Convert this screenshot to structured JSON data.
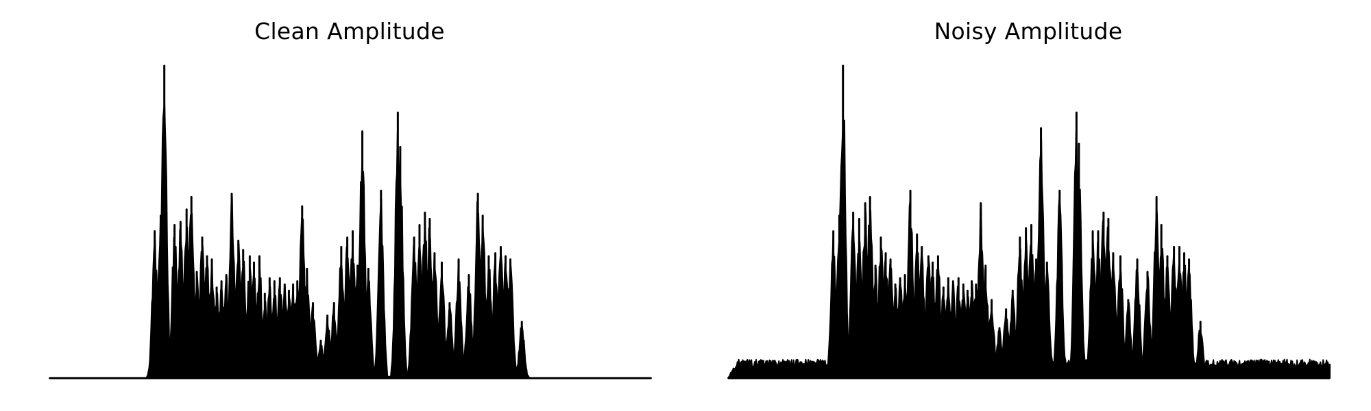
{
  "figure": {
    "background": "#ffffff",
    "line_color": "#000000"
  },
  "chart_data": [
    {
      "type": "area",
      "title": "Clean Amplitude",
      "xlabel": "",
      "ylabel": "",
      "axes_visible": false,
      "grid": false,
      "x_range": [
        0,
        1
      ],
      "y_range": [
        0,
        1
      ],
      "noise_floor": 0.0,
      "peaks": [
        [
          0.175,
          0.47
        ],
        [
          0.185,
          0.52
        ],
        [
          0.191,
          1.0
        ],
        [
          0.208,
          0.49
        ],
        [
          0.218,
          0.5
        ],
        [
          0.228,
          0.54
        ],
        [
          0.236,
          0.58
        ],
        [
          0.245,
          0.34
        ],
        [
          0.254,
          0.45
        ],
        [
          0.262,
          0.39
        ],
        [
          0.27,
          0.38
        ],
        [
          0.278,
          0.29
        ],
        [
          0.286,
          0.31
        ],
        [
          0.294,
          0.33
        ],
        [
          0.303,
          0.59
        ],
        [
          0.314,
          0.44
        ],
        [
          0.322,
          0.41
        ],
        [
          0.333,
          0.39
        ],
        [
          0.34,
          0.37
        ],
        [
          0.349,
          0.39
        ],
        [
          0.358,
          0.27
        ],
        [
          0.366,
          0.32
        ],
        [
          0.374,
          0.31
        ],
        [
          0.383,
          0.32
        ],
        [
          0.391,
          0.3
        ],
        [
          0.398,
          0.28
        ],
        [
          0.405,
          0.3
        ],
        [
          0.412,
          0.31
        ],
        [
          0.42,
          0.55
        ],
        [
          0.428,
          0.35
        ],
        [
          0.438,
          0.24
        ],
        [
          0.451,
          0.12
        ],
        [
          0.462,
          0.2
        ],
        [
          0.473,
          0.24
        ],
        [
          0.485,
          0.42
        ],
        [
          0.495,
          0.45
        ],
        [
          0.504,
          0.47
        ],
        [
          0.512,
          0.36
        ],
        [
          0.52,
          0.79
        ],
        [
          0.53,
          0.35
        ],
        [
          0.551,
          0.6
        ],
        [
          0.579,
          0.85
        ],
        [
          0.583,
          0.74
        ],
        [
          0.606,
          0.45
        ],
        [
          0.615,
          0.49
        ],
        [
          0.624,
          0.53
        ],
        [
          0.632,
          0.51
        ],
        [
          0.64,
          0.4
        ],
        [
          0.652,
          0.37
        ],
        [
          0.665,
          0.24
        ],
        [
          0.68,
          0.38
        ],
        [
          0.697,
          0.33
        ],
        [
          0.712,
          0.59
        ],
        [
          0.72,
          0.52
        ],
        [
          0.73,
          0.39
        ],
        [
          0.741,
          0.4
        ],
        [
          0.75,
          0.42
        ],
        [
          0.758,
          0.39
        ],
        [
          0.766,
          0.38
        ],
        [
          0.785,
          0.18
        ]
      ]
    },
    {
      "type": "area",
      "title": "Noisy Amplitude",
      "xlabel": "",
      "ylabel": "",
      "axes_visible": false,
      "grid": false,
      "x_range": [
        0,
        1
      ],
      "y_range": [
        0,
        1
      ],
      "noise_floor": 0.06,
      "peaks": [
        [
          0.175,
          0.47
        ],
        [
          0.185,
          0.52
        ],
        [
          0.191,
          1.0
        ],
        [
          0.208,
          0.53
        ],
        [
          0.218,
          0.51
        ],
        [
          0.228,
          0.56
        ],
        [
          0.236,
          0.58
        ],
        [
          0.245,
          0.36
        ],
        [
          0.254,
          0.45
        ],
        [
          0.262,
          0.4
        ],
        [
          0.27,
          0.38
        ],
        [
          0.278,
          0.3
        ],
        [
          0.286,
          0.32
        ],
        [
          0.294,
          0.33
        ],
        [
          0.303,
          0.6
        ],
        [
          0.314,
          0.46
        ],
        [
          0.322,
          0.42
        ],
        [
          0.333,
          0.39
        ],
        [
          0.34,
          0.37
        ],
        [
          0.349,
          0.39
        ],
        [
          0.358,
          0.29
        ],
        [
          0.366,
          0.32
        ],
        [
          0.374,
          0.31
        ],
        [
          0.383,
          0.32
        ],
        [
          0.391,
          0.3
        ],
        [
          0.398,
          0.28
        ],
        [
          0.405,
          0.31
        ],
        [
          0.412,
          0.3
        ],
        [
          0.42,
          0.56
        ],
        [
          0.428,
          0.36
        ],
        [
          0.438,
          0.25
        ],
        [
          0.451,
          0.16
        ],
        [
          0.462,
          0.22
        ],
        [
          0.473,
          0.28
        ],
        [
          0.485,
          0.45
        ],
        [
          0.495,
          0.48
        ],
        [
          0.504,
          0.49
        ],
        [
          0.512,
          0.38
        ],
        [
          0.52,
          0.8
        ],
        [
          0.53,
          0.37
        ],
        [
          0.551,
          0.6
        ],
        [
          0.579,
          0.85
        ],
        [
          0.583,
          0.75
        ],
        [
          0.606,
          0.47
        ],
        [
          0.615,
          0.47
        ],
        [
          0.624,
          0.53
        ],
        [
          0.632,
          0.51
        ],
        [
          0.64,
          0.4
        ],
        [
          0.652,
          0.39
        ],
        [
          0.665,
          0.25
        ],
        [
          0.68,
          0.38
        ],
        [
          0.697,
          0.34
        ],
        [
          0.712,
          0.58
        ],
        [
          0.72,
          0.49
        ],
        [
          0.73,
          0.39
        ],
        [
          0.741,
          0.42
        ],
        [
          0.75,
          0.42
        ],
        [
          0.758,
          0.4
        ],
        [
          0.766,
          0.38
        ],
        [
          0.785,
          0.18
        ]
      ]
    }
  ]
}
